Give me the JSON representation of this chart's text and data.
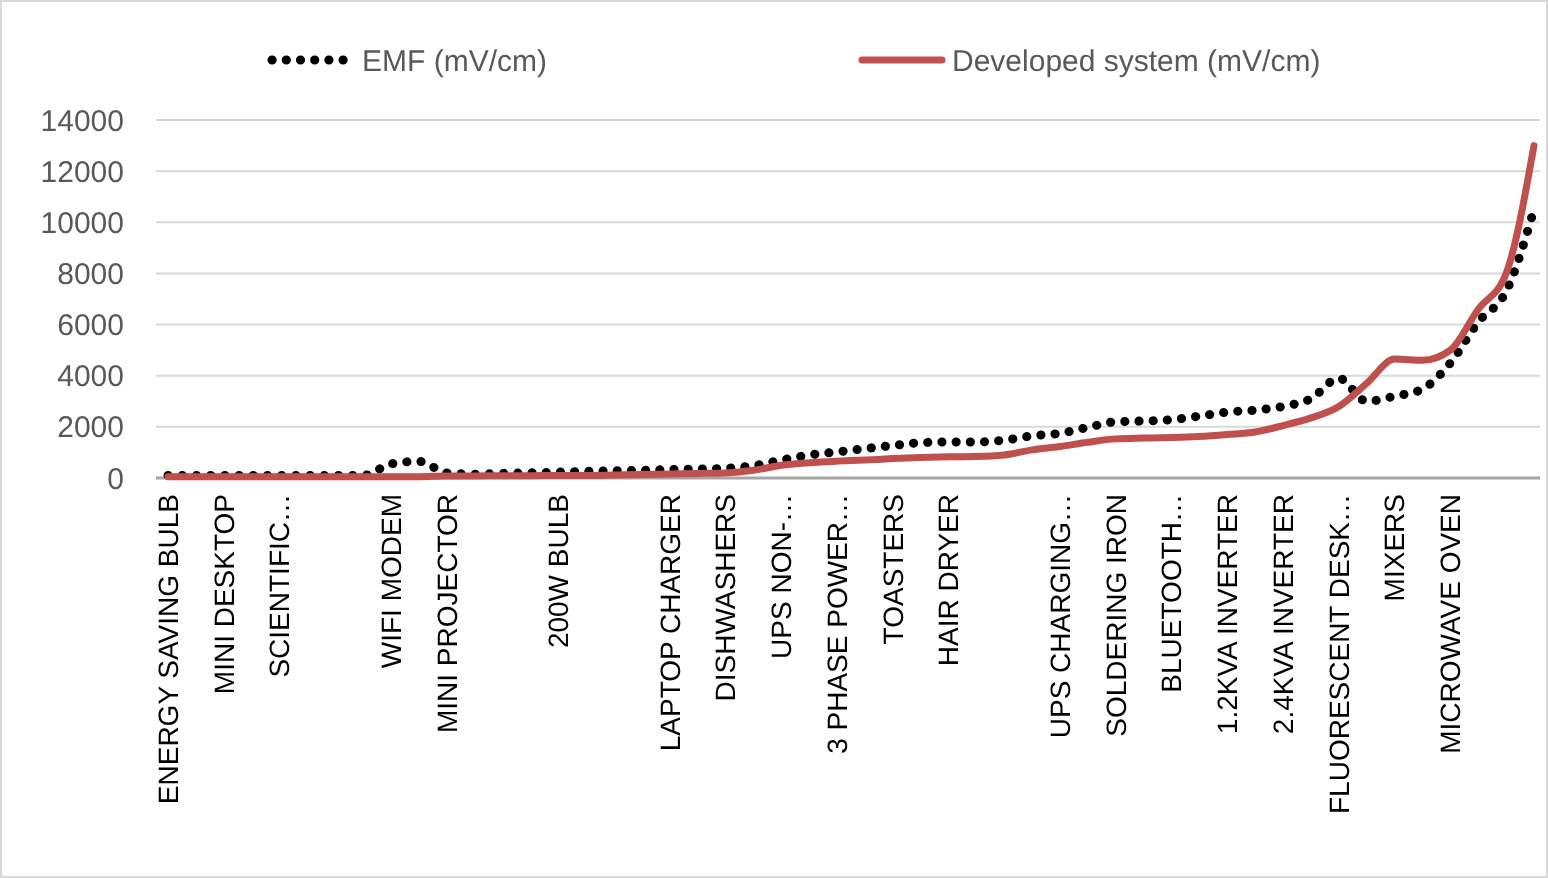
{
  "chart_data": {
    "type": "line",
    "categories": [
      "ENERGY SAVING BULB",
      null,
      "MINI DESKTOP",
      null,
      "SCIENTIFIC…",
      null,
      null,
      null,
      "WIFI MODEM",
      null,
      "MINI PROJECTOR",
      null,
      null,
      null,
      "200W BULB",
      null,
      null,
      null,
      "LAPTOP CHARGER",
      null,
      "DISHWASHERS",
      null,
      "UPS NON-…",
      null,
      "3 PHASE POWER…",
      null,
      "TOASTERS",
      null,
      "HAIR DRYER",
      null,
      null,
      null,
      "UPS CHARGING…",
      null,
      "SOLDERING IRON",
      null,
      "BLUETOOTH…",
      null,
      "1.2KVA INVERTER",
      null,
      "2.4KVA INVERTER",
      null,
      "FLUORESCENT DESK…",
      null,
      "MIXERS",
      null,
      "MICROWAVE OVEN",
      null,
      null,
      null
    ],
    "series": [
      {
        "name": "EMF (mV/cm)",
        "color": "#000000",
        "line_style": "dotted",
        "values": [
          100,
          100,
          100,
          100,
          100,
          100,
          100,
          100,
          550,
          650,
          200,
          150,
          180,
          200,
          230,
          260,
          280,
          300,
          330,
          350,
          380,
          480,
          700,
          900,
          1020,
          1150,
          1270,
          1380,
          1410,
          1410,
          1480,
          1650,
          1750,
          1980,
          2200,
          2230,
          2280,
          2420,
          2580,
          2650,
          2800,
          3100,
          3900,
          3000,
          3200,
          3480,
          4500,
          6100,
          7300,
          10500
        ]
      },
      {
        "name": "Developed system (mV/cm)",
        "color": "#c0504d",
        "line_style": "solid",
        "values": [
          50,
          50,
          50,
          50,
          50,
          50,
          50,
          50,
          50,
          50,
          80,
          80,
          90,
          90,
          100,
          100,
          120,
          140,
          160,
          180,
          200,
          300,
          500,
          600,
          660,
          700,
          760,
          800,
          830,
          840,
          900,
          1100,
          1230,
          1400,
          1530,
          1560,
          1580,
          1620,
          1700,
          1800,
          2050,
          2350,
          2800,
          3700,
          4650,
          4600,
          5000,
          6600,
          8000,
          13000
        ]
      }
    ],
    "ylim": [
      0,
      14000
    ],
    "yticks": [
      0,
      2000,
      4000,
      6000,
      8000,
      10000,
      12000,
      14000
    ],
    "grid": "y",
    "legend": "top",
    "marker": "none"
  }
}
